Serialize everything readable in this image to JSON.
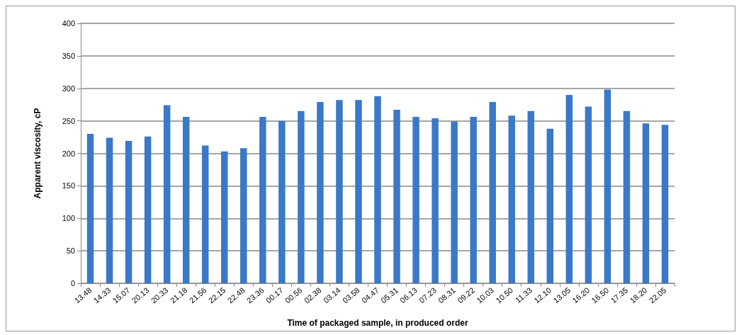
{
  "chart_data": {
    "type": "bar",
    "xlabel": "Time of packaged sample, in produced order",
    "ylabel": "Apparent viscosity, cP",
    "categories": [
      "13.48",
      "14.33",
      "15.07",
      "20.13",
      "20.33",
      "21.18",
      "21.56",
      "22.15",
      "22.48",
      "23.36",
      "00.17",
      "00.56",
      "02.38",
      "03.14",
      "03.58",
      "04.47",
      "05.31",
      "06.13",
      "07.23",
      "08.31",
      "09.22",
      "10.03",
      "10.50",
      "11.33",
      "12.10",
      "13.05",
      "16.20",
      "16.50",
      "17.35",
      "18.20",
      "22.05"
    ],
    "values": [
      230,
      224,
      219,
      226,
      274,
      256,
      212,
      203,
      208,
      256,
      250,
      265,
      279,
      282,
      282,
      288,
      267,
      256,
      254,
      249,
      256,
      279,
      258,
      265,
      238,
      290,
      272,
      298,
      265,
      246,
      244
    ],
    "color": "#3a78c8",
    "ylim": [
      0,
      400
    ],
    "yticks": [
      0,
      50,
      100,
      150,
      200,
      250,
      300,
      350,
      400
    ],
    "grid": "y"
  }
}
